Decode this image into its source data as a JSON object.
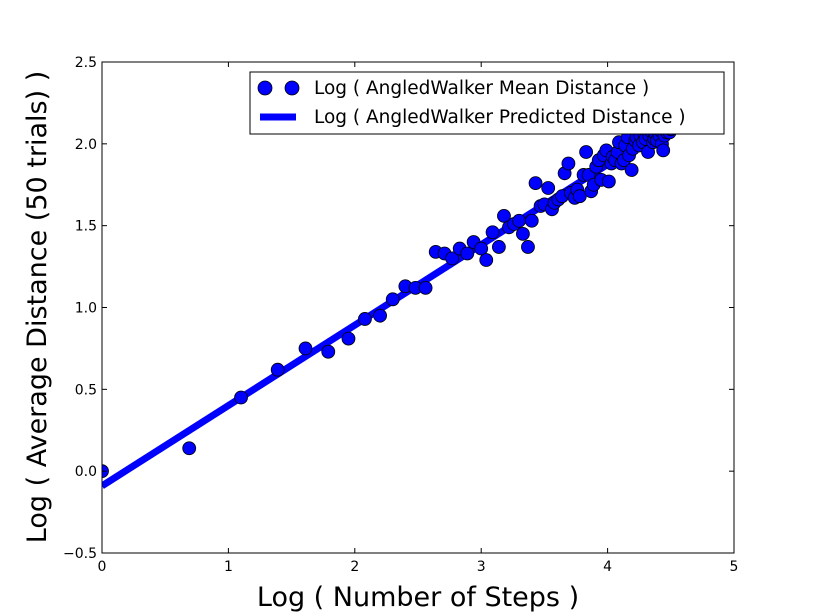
{
  "chart_data": {
    "type": "scatter",
    "title": "",
    "xlabel": "Log ( Number of Steps )",
    "ylabel": "Log ( Average Distance (50 trials) )",
    "xlim": [
      0,
      5
    ],
    "ylim": [
      -0.5,
      2.5
    ],
    "xticks": [
      0,
      1,
      2,
      3,
      4,
      5
    ],
    "xtick_labels": [
      "0",
      "1",
      "2",
      "3",
      "4",
      "5"
    ],
    "yticks": [
      -0.5,
      0.0,
      0.5,
      1.0,
      1.5,
      2.0,
      2.5
    ],
    "ytick_labels": [
      "−0.5",
      "0.0",
      "0.5",
      "1.0",
      "1.5",
      "2.0",
      "2.5"
    ],
    "grid": false,
    "legend_position": "top-right",
    "series": [
      {
        "name": "Log ( AngledWalker Mean Distance )",
        "type": "scatter",
        "color": "#0000ff",
        "points": [
          [
            0.0,
            0.0
          ],
          [
            0.69,
            0.14
          ],
          [
            1.1,
            0.45
          ],
          [
            1.39,
            0.62
          ],
          [
            1.61,
            0.75
          ],
          [
            1.79,
            0.73
          ],
          [
            1.95,
            0.81
          ],
          [
            2.08,
            0.93
          ],
          [
            2.2,
            0.95
          ],
          [
            2.3,
            1.05
          ],
          [
            2.4,
            1.13
          ],
          [
            2.48,
            1.12
          ],
          [
            2.56,
            1.12
          ],
          [
            2.64,
            1.34
          ],
          [
            2.71,
            1.33
          ],
          [
            2.77,
            1.3
          ],
          [
            2.83,
            1.36
          ],
          [
            2.89,
            1.33
          ],
          [
            2.94,
            1.4
          ],
          [
            3.0,
            1.36
          ],
          [
            3.04,
            1.29
          ],
          [
            3.09,
            1.46
          ],
          [
            3.14,
            1.37
          ],
          [
            3.18,
            1.56
          ],
          [
            3.22,
            1.49
          ],
          [
            3.26,
            1.51
          ],
          [
            3.3,
            1.53
          ],
          [
            3.33,
            1.45
          ],
          [
            3.37,
            1.37
          ],
          [
            3.4,
            1.53
          ],
          [
            3.43,
            1.76
          ],
          [
            3.47,
            1.62
          ],
          [
            3.5,
            1.63
          ],
          [
            3.53,
            1.73
          ],
          [
            3.56,
            1.6
          ],
          [
            3.58,
            1.64
          ],
          [
            3.61,
            1.66
          ],
          [
            3.64,
            1.68
          ],
          [
            3.66,
            1.82
          ],
          [
            3.69,
            1.88
          ],
          [
            3.71,
            1.7
          ],
          [
            3.74,
            1.67
          ],
          [
            3.76,
            1.72
          ],
          [
            3.78,
            1.68
          ],
          [
            3.81,
            1.81
          ],
          [
            3.83,
            1.95
          ],
          [
            3.85,
            1.81
          ],
          [
            3.87,
            1.71
          ],
          [
            3.89,
            1.75
          ],
          [
            3.91,
            1.86
          ],
          [
            3.93,
            1.9
          ],
          [
            3.95,
            1.78
          ],
          [
            3.97,
            1.93
          ],
          [
            3.99,
            1.96
          ],
          [
            4.01,
            1.77
          ],
          [
            4.03,
            1.88
          ],
          [
            4.04,
            1.92
          ],
          [
            4.06,
            1.9
          ],
          [
            4.08,
            1.95
          ],
          [
            4.09,
            2.01
          ],
          [
            4.11,
            1.88
          ],
          [
            4.13,
            1.9
          ],
          [
            4.14,
            1.99
          ],
          [
            4.16,
            2.04
          ],
          [
            4.17,
            1.93
          ],
          [
            4.19,
            1.84
          ],
          [
            4.2,
            1.97
          ],
          [
            4.22,
            2.02
          ],
          [
            4.23,
            2.04
          ],
          [
            4.25,
            1.99
          ],
          [
            4.26,
            2.05
          ],
          [
            4.28,
            2.01
          ],
          [
            4.29,
            2.06
          ],
          [
            4.3,
            2.03
          ],
          [
            4.32,
            1.95
          ],
          [
            4.33,
            2.05
          ],
          [
            4.34,
            2.08
          ],
          [
            4.36,
            2.01
          ],
          [
            4.37,
            2.03
          ],
          [
            4.38,
            2.06
          ],
          [
            4.39,
            2.02
          ],
          [
            4.41,
            2.05
          ],
          [
            4.42,
            2.08
          ],
          [
            4.43,
            2.0
          ],
          [
            4.44,
            1.96
          ],
          [
            4.45,
            2.05
          ],
          [
            4.47,
            2.07
          ],
          [
            4.48,
            2.08
          ],
          [
            4.49,
            2.07
          ],
          [
            4.5,
            2.09
          ]
        ]
      },
      {
        "name": "Log ( AngledWalker Predicted Distance )",
        "type": "line",
        "color": "#0000ff",
        "x": [
          0,
          4.5
        ],
        "y": [
          -0.09,
          2.12
        ]
      }
    ]
  }
}
